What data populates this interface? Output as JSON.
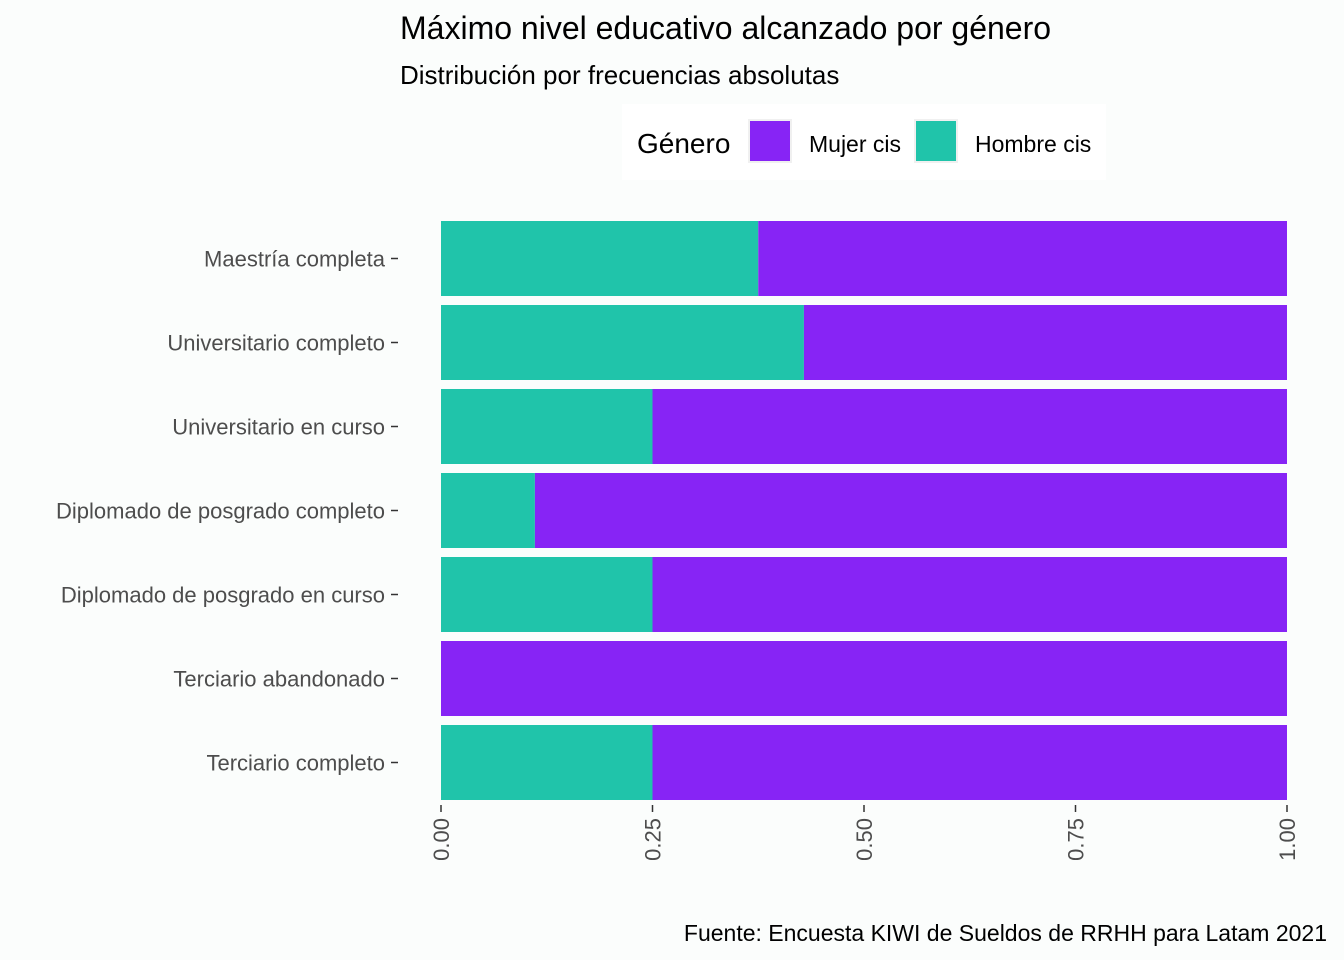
{
  "chart_data": {
    "type": "bar",
    "orientation": "horizontal",
    "stacked": "fill",
    "title": "Máximo nivel educativo alcanzado por género",
    "subtitle": "Distribución por frecuencias absolutas",
    "caption": "Fuente: Encuesta KIWI de Sueldos de RRHH para Latam 2021",
    "legend_title": "Género",
    "legend_position": "top",
    "categories": [
      "Maestría completa",
      "Universitario completo",
      "Universitario en curso",
      "Diplomado de posgrado completo",
      "Diplomado de posgrado en curso",
      "Terciario abandonado",
      "Terciario completo"
    ],
    "series": [
      {
        "name": "Mujer cis",
        "color": "#8724f5",
        "values": [
          0.625,
          0.571,
          0.75,
          0.889,
          0.75,
          1.0,
          0.75
        ]
      },
      {
        "name": "Hombre cis",
        "color": "#20c4aa",
        "values": [
          0.375,
          0.429,
          0.25,
          0.111,
          0.25,
          0.0,
          0.25
        ]
      }
    ],
    "xlim": [
      0,
      1
    ],
    "xticks": [
      "0.00",
      "0.25",
      "0.50",
      "0.75",
      "1.00"
    ],
    "xtick_values": [
      0,
      0.25,
      0.5,
      0.75,
      1
    ],
    "grid": false
  }
}
